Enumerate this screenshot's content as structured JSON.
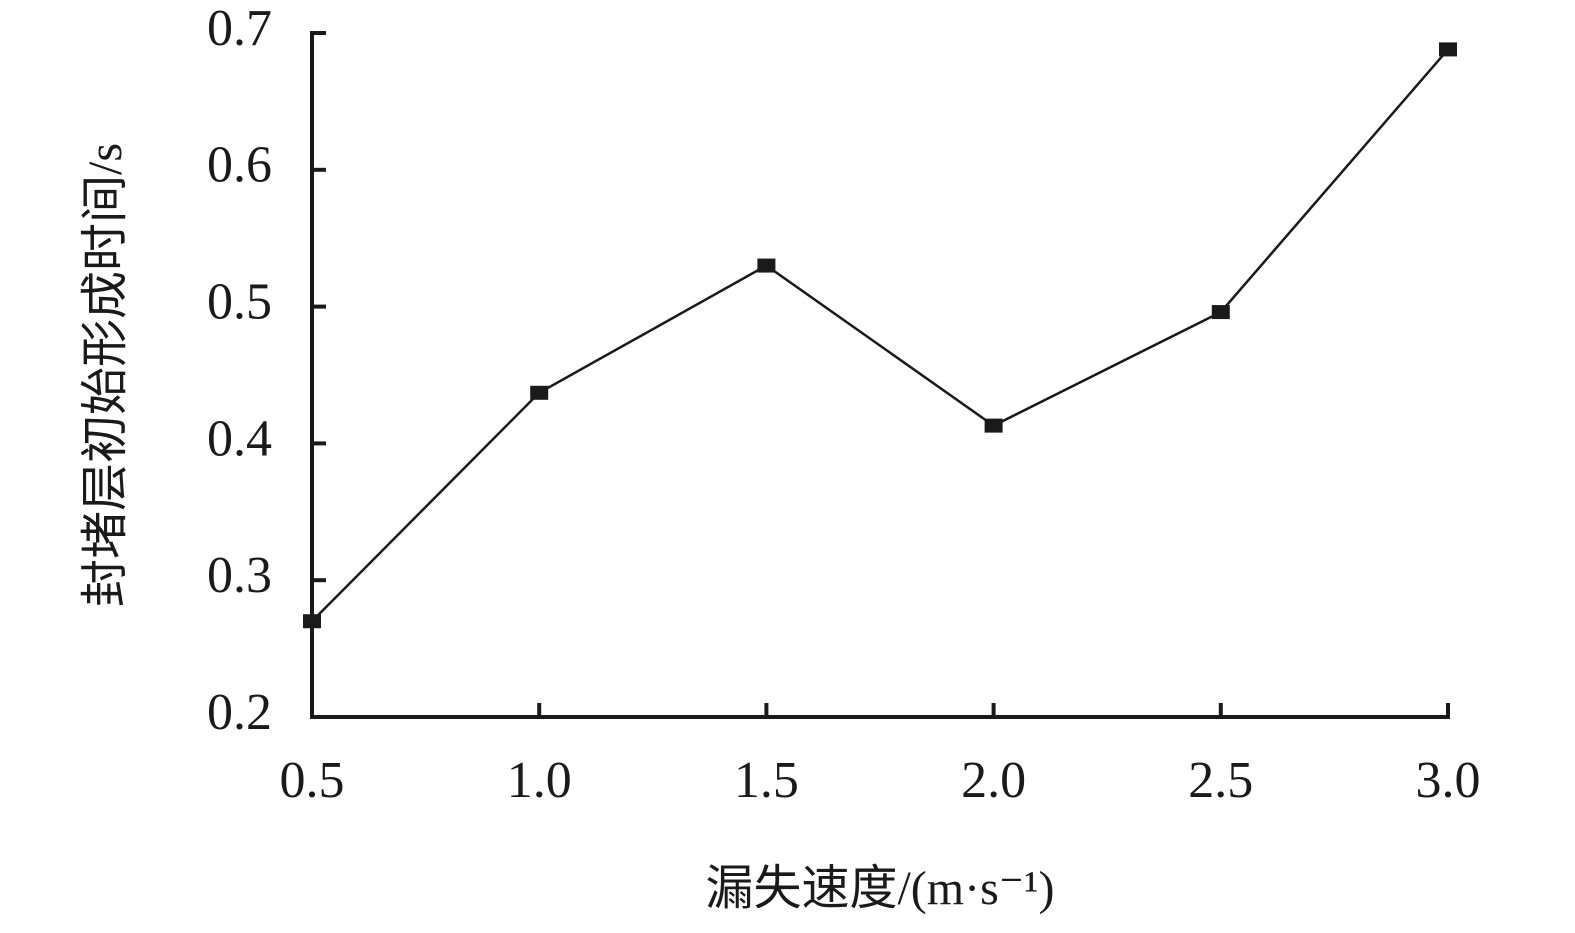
{
  "chart_data": {
    "type": "line",
    "x_label": "漏失速度/(m·s⁻¹)",
    "y_label": "封堵层初始形成时间/s",
    "x": [
      0.5,
      1.0,
      1.5,
      2.0,
      2.5,
      3.0
    ],
    "series": [
      {
        "color": "#1a1a1a",
        "values": [
          0.27,
          0.437,
          0.53,
          0.413,
          0.496,
          0.688
        ]
      }
    ],
    "xlim": [
      0.5,
      3.0
    ],
    "xticks": [
      0.5,
      {
        "value": 1.0,
        "label": "1.0"
      },
      1.5,
      {
        "value": 2.0,
        "label": "2.0"
      },
      2.5,
      {
        "value": 3.0,
        "label": "3.0"
      }
    ],
    "ylim": [
      0.2,
      0.7
    ],
    "yticks": [
      0.2,
      0.3,
      0.4,
      0.5,
      0.6,
      0.7
    ],
    "grid": false
  }
}
